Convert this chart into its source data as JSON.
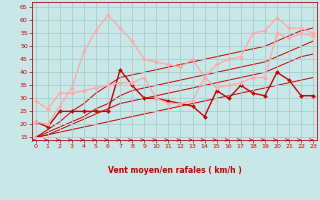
{
  "background_color": "#c8e8e8",
  "grid_color": "#aacccc",
  "xlabel": "Vent moyen/en rafales ( km/h )",
  "xlim": [
    -0.3,
    23.3
  ],
  "ylim": [
    14,
    67
  ],
  "yticks": [
    15,
    20,
    25,
    30,
    35,
    40,
    45,
    50,
    55,
    60,
    65
  ],
  "xticks": [
    0,
    1,
    2,
    3,
    4,
    5,
    6,
    7,
    8,
    9,
    10,
    11,
    12,
    13,
    14,
    15,
    16,
    17,
    18,
    19,
    20,
    21,
    22,
    23
  ],
  "series": [
    {
      "x": [
        0,
        1,
        2,
        3,
        4,
        5,
        6,
        7,
        8,
        9,
        10,
        11,
        12,
        13,
        14,
        15,
        16,
        17,
        18,
        19,
        20,
        21,
        22,
        23
      ],
      "y": [
        15,
        16,
        17,
        18,
        19,
        20,
        21,
        22,
        23,
        24,
        25,
        26,
        27,
        28,
        29,
        30,
        31,
        32,
        33,
        34,
        35,
        36,
        37,
        38
      ],
      "color": "#cc0000",
      "lw": 0.7,
      "marker": null,
      "ms": 0,
      "zorder": 1,
      "alpha": 1.0
    },
    {
      "x": [
        0,
        1,
        2,
        3,
        4,
        5,
        6,
        7,
        8,
        9,
        10,
        11,
        12,
        13,
        14,
        15,
        16,
        17,
        18,
        19,
        20,
        21,
        22,
        23
      ],
      "y": [
        15,
        16,
        18,
        20,
        22,
        24,
        26,
        28,
        29,
        30,
        31,
        32,
        33,
        34,
        35,
        36,
        37,
        38,
        39,
        40,
        42,
        44,
        46,
        47
      ],
      "color": "#cc0000",
      "lw": 0.7,
      "marker": null,
      "ms": 0,
      "zorder": 1,
      "alpha": 1.0
    },
    {
      "x": [
        0,
        1,
        2,
        3,
        4,
        5,
        6,
        7,
        8,
        9,
        10,
        11,
        12,
        13,
        14,
        15,
        16,
        17,
        18,
        19,
        20,
        21,
        22,
        23
      ],
      "y": [
        15,
        17,
        19,
        21,
        23,
        26,
        28,
        31,
        33,
        34,
        35,
        36,
        37,
        38,
        39,
        40,
        41,
        42,
        43,
        44,
        46,
        48,
        50,
        52
      ],
      "color": "#cc0000",
      "lw": 0.7,
      "marker": null,
      "ms": 0,
      "zorder": 1,
      "alpha": 1.0
    },
    {
      "x": [
        0,
        1,
        2,
        3,
        4,
        5,
        6,
        7,
        8,
        9,
        10,
        11,
        12,
        13,
        14,
        15,
        16,
        17,
        18,
        19,
        20,
        21,
        22,
        23
      ],
      "y": [
        15,
        18,
        21,
        25,
        28,
        32,
        35,
        38,
        39,
        40,
        41,
        42,
        43,
        44,
        45,
        46,
        47,
        48,
        49,
        50,
        52,
        54,
        56,
        57
      ],
      "color": "#cc0000",
      "lw": 0.7,
      "marker": null,
      "ms": 0,
      "zorder": 1,
      "alpha": 1.0
    },
    {
      "x": [
        0,
        1,
        2,
        3,
        4,
        5,
        6,
        7,
        8,
        9,
        10,
        11,
        12,
        13,
        14,
        15,
        16,
        17,
        18,
        19,
        20,
        21,
        22,
        23
      ],
      "y": [
        21,
        19,
        25,
        25,
        25,
        25,
        25,
        41,
        35,
        30,
        30,
        29,
        28,
        27,
        23,
        33,
        30,
        35,
        32,
        31,
        40,
        37,
        31,
        31
      ],
      "color": "#cc0000",
      "lw": 1.0,
      "marker": "D",
      "ms": 2.0,
      "zorder": 3,
      "alpha": 1.0
    },
    {
      "x": [
        0,
        1,
        2,
        3,
        4,
        5,
        6,
        7,
        8,
        9,
        10,
        11,
        12,
        13,
        14,
        15,
        16,
        17,
        18,
        19,
        20,
        21,
        22,
        23
      ],
      "y": [
        21,
        20,
        27,
        34,
        48,
        56,
        62,
        57,
        52,
        45,
        44,
        43,
        42,
        45,
        38,
        43,
        45,
        46,
        55,
        56,
        61,
        57,
        57,
        55
      ],
      "color": "#ffaaaa",
      "lw": 1.0,
      "marker": "D",
      "ms": 2.0,
      "zorder": 3,
      "alpha": 1.0
    },
    {
      "x": [
        0,
        1,
        2,
        3,
        4,
        5,
        6,
        7,
        8,
        9,
        10,
        11,
        12,
        13,
        14,
        15,
        16,
        17,
        18,
        19,
        20,
        21,
        22,
        23
      ],
      "y": [
        29,
        26,
        32,
        32,
        33,
        34,
        35,
        36,
        36,
        38,
        30,
        28,
        28,
        29,
        38,
        34,
        35,
        36,
        38,
        38,
        55,
        53,
        55,
        54
      ],
      "color": "#ffaaaa",
      "lw": 1.0,
      "marker": "D",
      "ms": 2.0,
      "zorder": 3,
      "alpha": 1.0
    }
  ]
}
